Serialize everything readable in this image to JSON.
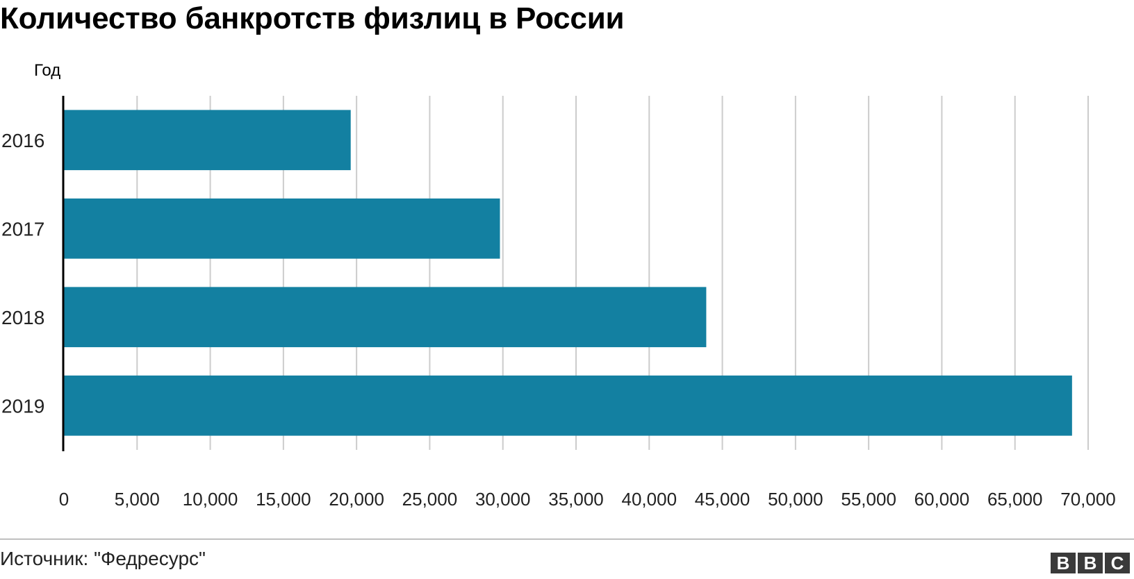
{
  "chart_data": {
    "type": "bar",
    "orientation": "horizontal",
    "title": "Количество банкротств физлиц в России",
    "ylabel": "Год",
    "xlabel": "",
    "categories": [
      "2016",
      "2017",
      "2018",
      "2019"
    ],
    "values": [
      19600,
      29800,
      43900,
      68900
    ],
    "xlim": [
      0,
      70000
    ],
    "xticks": [
      0,
      5000,
      10000,
      15000,
      20000,
      25000,
      30000,
      35000,
      40000,
      45000,
      50000,
      55000,
      60000,
      65000,
      70000
    ],
    "xtick_labels": [
      "0",
      "5,000",
      "10,000",
      "15,000",
      "20,000",
      "25,000",
      "30,000",
      "35,000",
      "40,000",
      "45,000",
      "50,000",
      "55,000",
      "60,000",
      "65,000",
      "70,000"
    ],
    "grid": true,
    "bar_color": "#1380A1"
  },
  "footer": {
    "source": "Источник: \"Федресурс\"",
    "logo_letters": [
      "B",
      "B",
      "C"
    ]
  }
}
